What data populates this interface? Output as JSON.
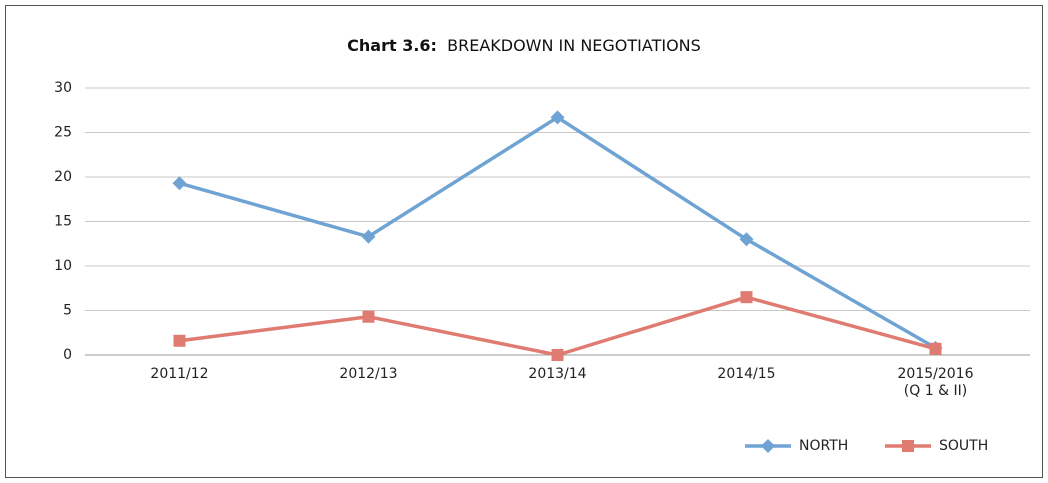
{
  "chart_data": {
    "type": "line",
    "title_label": "Chart 3.6:",
    "title": "BREAKDOWN IN NEGOTIATIONS",
    "categories": [
      "2011/12",
      "2012/13",
      "2013/14",
      "2014/15",
      "2015/2016\n(Q 1 & II)"
    ],
    "series": [
      {
        "name": "NORTH",
        "color": "#6fa3d3",
        "marker": "diamond",
        "values": [
          19.3,
          13.3,
          26.7,
          13,
          0.8
        ]
      },
      {
        "name": "SOUTH",
        "color": "#e07b72",
        "marker": "square",
        "values": [
          1.6,
          4.3,
          0,
          6.5,
          0.7
        ]
      }
    ],
    "ylim": [
      0,
      30
    ],
    "yticks": [
      0,
      5,
      10,
      15,
      20,
      25,
      30
    ],
    "grid": true,
    "legend": "bottom-right"
  }
}
